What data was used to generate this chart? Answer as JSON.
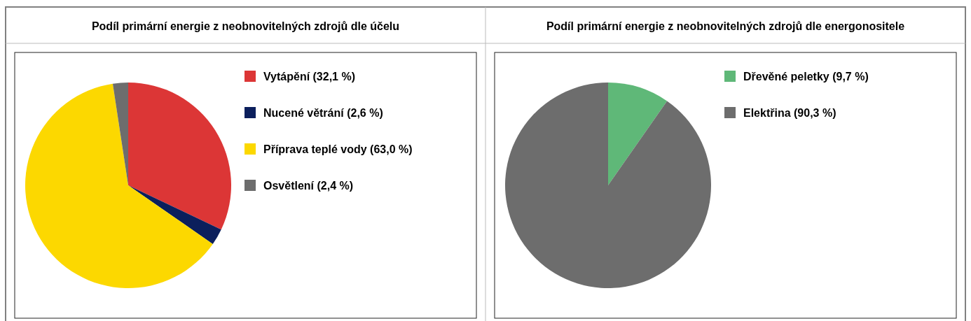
{
  "chart_data": [
    {
      "type": "pie",
      "title": "Podíl primární energie z neobnovitelných zdrojů dle účelu",
      "categories": [
        "Vytápění (32,1 %)",
        "Nucené větrání (2,6 %)",
        "Příprava teplé vody (63,0 %)",
        "Osvětlení (2,4 %)"
      ],
      "values": [
        32.1,
        2.6,
        63.0,
        2.4
      ],
      "colors": [
        "#dc3636",
        "#0b1f5c",
        "#fcd800",
        "#6d6d6d"
      ],
      "legend": "right"
    },
    {
      "type": "pie",
      "title": "Podíl primární energie z neobnovitelných zdrojů dle energonositele",
      "categories": [
        "Dřevěné peletky (9,7 %)",
        "Elektřina (90,3 %)"
      ],
      "values": [
        9.7,
        90.3
      ],
      "colors": [
        "#5fb878",
        "#6d6d6d"
      ],
      "legend": "right"
    }
  ]
}
